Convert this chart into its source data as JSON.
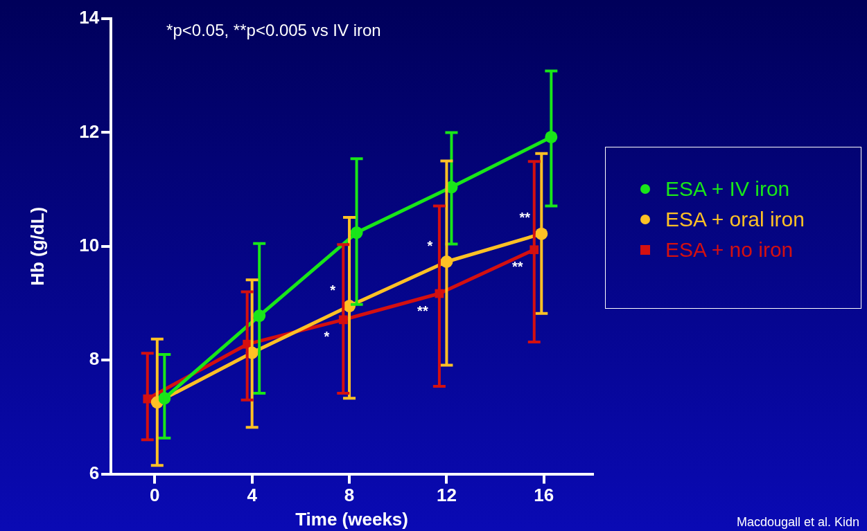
{
  "chart_data": {
    "type": "line",
    "xlabel": "Time (weeks)",
    "ylabel": "Hb (g/dL)",
    "xlim": [
      -1.8,
      18
    ],
    "xticks": [
      0,
      4,
      8,
      12,
      16
    ],
    "ylim": [
      6,
      14
    ],
    "yticks": [
      6,
      8,
      10,
      12,
      14
    ],
    "grid": false,
    "legend": "right",
    "marker": "circle",
    "line_style": "solid",
    "series": [
      {
        "name": "ESA + IV iron",
        "color": "#19e619",
        "x": [
          0.4,
          4.3,
          8.3,
          12.2,
          16.3
        ],
        "values": [
          7.33,
          8.78,
          10.24,
          11.04,
          11.92
        ],
        "errors": [
          [
            6.63,
            8.1
          ],
          [
            7.42,
            10.05
          ],
          [
            8.98,
            11.54
          ],
          [
            10.04,
            12.0
          ],
          [
            10.71,
            13.08
          ]
        ]
      },
      {
        "name": "ESA + oral iron",
        "color": "#ffc125",
        "x": [
          0.1,
          4.0,
          8.0,
          12.0,
          15.9
        ],
        "values": [
          7.26,
          8.13,
          8.95,
          9.73,
          10.22
        ],
        "errors": [
          [
            6.15,
            8.37
          ],
          [
            6.82,
            9.41
          ],
          [
            7.33,
            10.51
          ],
          [
            7.91,
            11.5
          ],
          [
            8.82,
            11.63
          ]
        ]
      },
      {
        "name": "ESA + no iron",
        "color": "#d41010",
        "marker": "square",
        "x": [
          -0.3,
          3.8,
          7.75,
          11.7,
          15.6
        ],
        "values": [
          7.32,
          8.28,
          8.71,
          9.17,
          9.94
        ],
        "errors": [
          [
            6.6,
            8.12
          ],
          [
            7.3,
            9.2
          ],
          [
            7.42,
            10.03
          ],
          [
            7.54,
            10.71
          ],
          [
            8.32,
            11.49
          ]
        ]
      }
    ],
    "annotations": [
      "*p<0.05, **p<0.005 vs IV iron",
      "Macdougall et al. Kidn",
      {
        "text": "**",
        "x": 15.9,
        "y": 10.22
      },
      {
        "text": "**",
        "x": 15.6,
        "y": 9.94
      },
      {
        "text": "*",
        "x": 12.0,
        "y": 9.73
      },
      {
        "text": "**",
        "x": 11.7,
        "y": 9.17
      },
      {
        "text": "*",
        "x": 8.0,
        "y": 8.95
      },
      {
        "text": "*",
        "x": 7.75,
        "y": 8.71
      }
    ]
  }
}
